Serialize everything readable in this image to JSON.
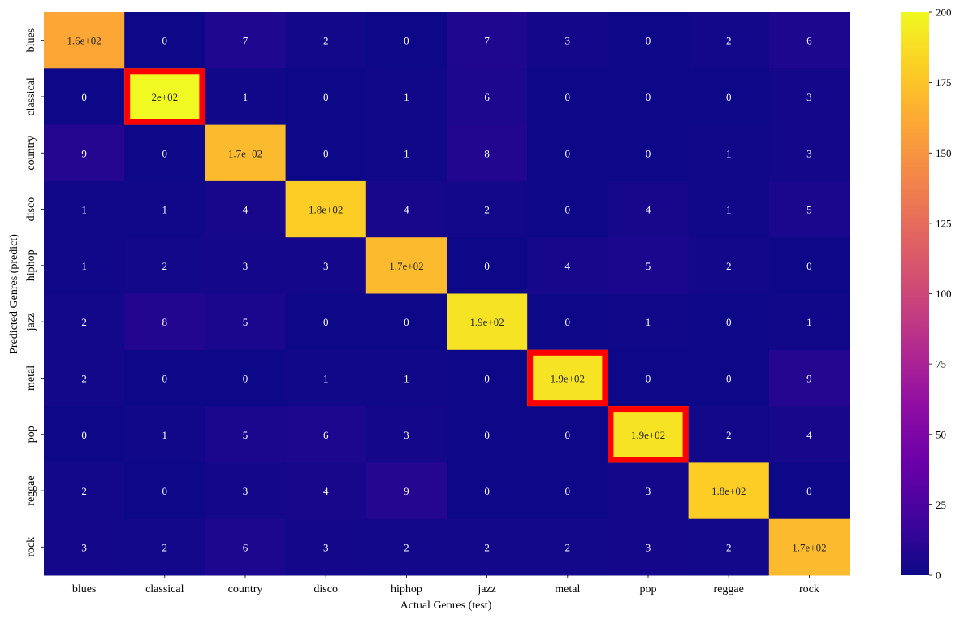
{
  "chart_data": {
    "type": "heatmap",
    "title": "",
    "xlabel": "Actual Genres (test)",
    "ylabel": "Predicted Genres (predict)",
    "x_categories": [
      "blues",
      "classical",
      "country",
      "disco",
      "hiphop",
      "jazz",
      "metal",
      "pop",
      "reggae",
      "rock"
    ],
    "y_categories": [
      "blues",
      "classical",
      "country",
      "disco",
      "hiphop",
      "jazz",
      "metal",
      "pop",
      "reggae",
      "rock"
    ],
    "values": [
      [
        160,
        0,
        7,
        2,
        0,
        7,
        3,
        0,
        2,
        6
      ],
      [
        0,
        200,
        1,
        0,
        1,
        6,
        0,
        0,
        0,
        3
      ],
      [
        9,
        0,
        170,
        0,
        1,
        8,
        0,
        0,
        1,
        3
      ],
      [
        1,
        1,
        4,
        180,
        4,
        2,
        0,
        4,
        1,
        5
      ],
      [
        1,
        2,
        3,
        3,
        170,
        0,
        4,
        5,
        2,
        0
      ],
      [
        2,
        8,
        5,
        0,
        0,
        190,
        0,
        1,
        0,
        1
      ],
      [
        2,
        0,
        0,
        1,
        1,
        0,
        190,
        0,
        0,
        9
      ],
      [
        0,
        1,
        5,
        6,
        3,
        0,
        0,
        190,
        2,
        4
      ],
      [
        2,
        0,
        3,
        4,
        9,
        0,
        0,
        3,
        180,
        0
      ],
      [
        3,
        2,
        6,
        3,
        2,
        2,
        2,
        3,
        2,
        170
      ]
    ],
    "labels": [
      [
        "1.6e+02",
        "0",
        "7",
        "2",
        "0",
        "7",
        "3",
        "0",
        "2",
        "6"
      ],
      [
        "0",
        "2e+02",
        "1",
        "0",
        "1",
        "6",
        "0",
        "0",
        "0",
        "3"
      ],
      [
        "9",
        "0",
        "1.7e+02",
        "0",
        "1",
        "8",
        "0",
        "0",
        "1",
        "3"
      ],
      [
        "1",
        "1",
        "4",
        "1.8e+02",
        "4",
        "2",
        "0",
        "4",
        "1",
        "5"
      ],
      [
        "1",
        "2",
        "3",
        "3",
        "1.7e+02",
        "0",
        "4",
        "5",
        "2",
        "0"
      ],
      [
        "2",
        "8",
        "5",
        "0",
        "0",
        "1.9e+02",
        "0",
        "1",
        "0",
        "1"
      ],
      [
        "2",
        "0",
        "0",
        "1",
        "1",
        "0",
        "1.9e+02",
        "0",
        "0",
        "9"
      ],
      [
        "0",
        "1",
        "5",
        "6",
        "3",
        "0",
        "0",
        "1.9e+02",
        "2",
        "4"
      ],
      [
        "2",
        "0",
        "3",
        "4",
        "9",
        "0",
        "0",
        "3",
        "1.8e+02",
        "0"
      ],
      [
        "3",
        "2",
        "6",
        "3",
        "2",
        "2",
        "2",
        "3",
        "2",
        "1.7e+02"
      ]
    ],
    "colormap": "plasma",
    "vmin": 0,
    "vmax": 200,
    "colorbar_ticks": [
      0,
      25,
      50,
      75,
      100,
      125,
      150,
      175,
      200
    ],
    "highlighted_cells": [
      [
        1,
        1
      ],
      [
        6,
        6
      ],
      [
        7,
        7
      ]
    ],
    "highlight_color": "#ff0000"
  }
}
